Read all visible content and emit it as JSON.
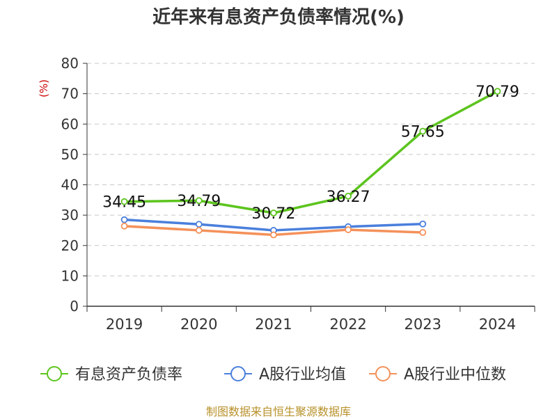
{
  "title": "近年来有息资产负债率情况(%)",
  "source_note": "制图数据来自恒生聚源数据库",
  "colors": {
    "series_0": "#5cc41e",
    "series_1": "#4a7fdc",
    "series_2": "#f4915a",
    "axis": "#333333",
    "grid": "#c8c8c8",
    "ylabel": "#cc0000"
  },
  "chart_data": {
    "type": "line",
    "categories": [
      "2019",
      "2020",
      "2021",
      "2022",
      "2023",
      "2024"
    ],
    "ylabel": "(%)",
    "ylim": [
      0,
      80
    ],
    "yticks": [
      0,
      10,
      20,
      30,
      40,
      50,
      60,
      70,
      80
    ],
    "grid": true,
    "legend": "bottom",
    "series": [
      {
        "name": "有息资产负债率",
        "values": [
          34.45,
          34.79,
          30.72,
          36.27,
          57.65,
          70.79
        ],
        "labels": [
          "34.45",
          "34.79",
          "30.72",
          "36.27",
          "57.65",
          "70.79"
        ]
      },
      {
        "name": "A股行业均值",
        "values": [
          28.5,
          27.0,
          25.0,
          26.2,
          27.1,
          null
        ]
      },
      {
        "name": "A股行业中位数",
        "values": [
          26.4,
          25.0,
          23.5,
          25.2,
          24.3,
          null
        ]
      }
    ]
  }
}
